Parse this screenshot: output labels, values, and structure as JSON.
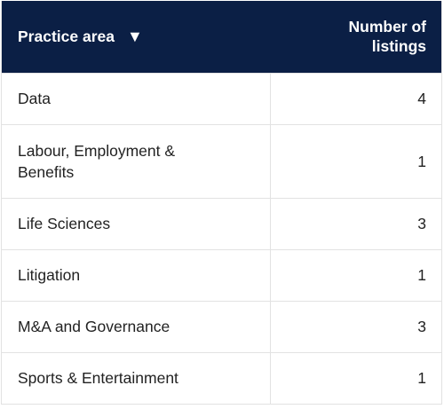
{
  "table": {
    "header": {
      "area_label": "Practice area",
      "sort_icon": "▼",
      "count_label_line1": "Number of",
      "count_label_line2": "listings"
    },
    "rows": [
      {
        "area": "Data",
        "count": "4"
      },
      {
        "area": "Labour, Employment & Benefits",
        "count": "1"
      },
      {
        "area": "Life Sciences",
        "count": "3"
      },
      {
        "area": "Litigation",
        "count": "1"
      },
      {
        "area": "M&A and Governance",
        "count": "3"
      },
      {
        "area": "Sports & Entertainment",
        "count": "1"
      }
    ]
  },
  "colors": {
    "header_bg": "#0b1f45",
    "header_text": "#ffffff",
    "border": "#e2e2e2",
    "body_text": "#222222"
  }
}
